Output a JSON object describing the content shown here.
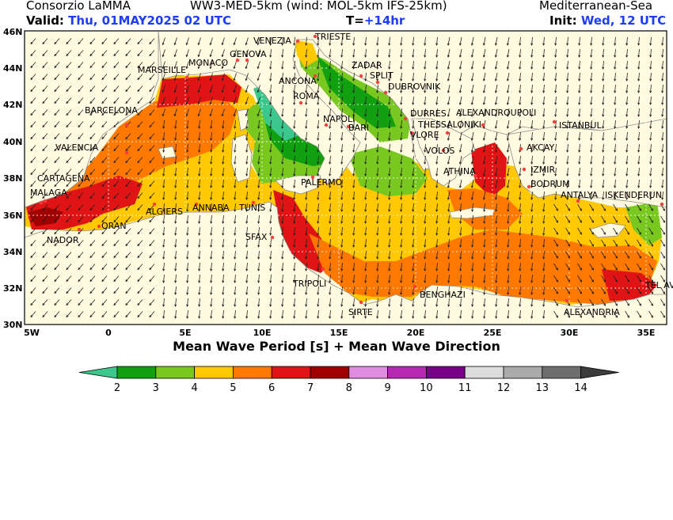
{
  "header": {
    "org": "Consorzio LaMMA",
    "model": "WW3-MED-5km (wind: MOL-5km IFS-25km)",
    "region": "Mediterranean-Sea",
    "valid_label": "Valid:",
    "valid_value": "Thu, 01MAY2025  02 UTC",
    "lead_label": "T=",
    "lead_value": "+14hr",
    "init_label": "Init:",
    "init_value": "Wed, 12 UTC"
  },
  "map_title": "Mean Wave Period [s] + Mean Wave Direction",
  "lat_labels": [
    "46N",
    "44N",
    "42N",
    "40N",
    "38N",
    "36N",
    "34N",
    "32N",
    "30N"
  ],
  "lon_labels": [
    "5W",
    "0",
    "5E",
    "10E",
    "15E",
    "20E",
    "25E",
    "30E",
    "35E"
  ],
  "cities": [
    "VENEZIA",
    "TRIESTE",
    "MONACO",
    "GENOVA",
    "MARSEILLE",
    "ZADAR",
    "SPLIT",
    "ANCONA",
    "DUBROVNIK",
    "ROMA",
    "BARCELONA",
    "DURRES",
    "ALEXANDROUPOLI",
    "NAPOLI",
    "THESSALONIKI",
    "BARI",
    "ISTANBUL",
    "VALENCIA",
    "VLORE",
    "AKCAY",
    "VOLOS",
    "IZMIR",
    "ATHINA",
    "CARTAGENA",
    "PALERMO",
    "BODRUM",
    "MALAGA",
    "ANTALYA",
    "ISKENDERUN",
    "ALGIERS",
    "ANNABA",
    "TUNIS",
    "ORAN",
    "NADOR",
    "SFAX",
    "TRIPOLI",
    "TEL AVIV",
    "BENGHAZI",
    "ALEXANDRIA",
    "SIRTE"
  ],
  "colorbar": {
    "ticks": [
      "2",
      "3",
      "4",
      "5",
      "6",
      "7",
      "8",
      "9",
      "10",
      "11",
      "12",
      "13",
      "14"
    ],
    "colors": [
      "#3cc88c",
      "#10a010",
      "#78c820",
      "#ffc800",
      "#ff7800",
      "#e01414",
      "#a00000",
      "#e08ce0",
      "#b428b4",
      "#780088",
      "#dcdcdc",
      "#aaaaaa",
      "#6e6e6e",
      "#3c3c3c"
    ]
  }
}
